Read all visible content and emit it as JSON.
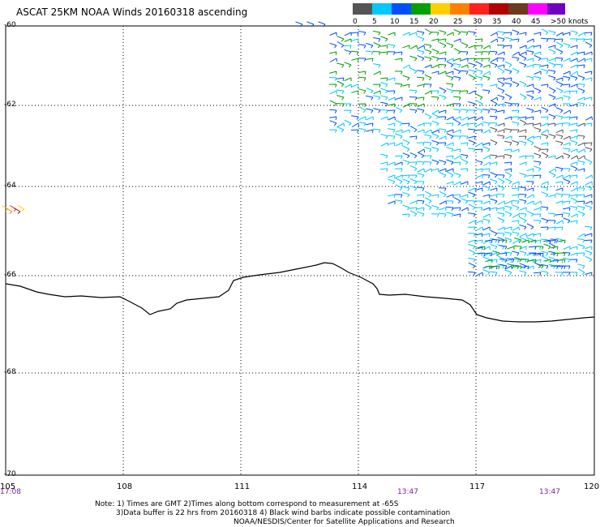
{
  "title": "ASCAT 25KM NOAA Winds 20160318 ascending",
  "latitude_labels": [
    "-60",
    "-62",
    "-64",
    "-66",
    "-68",
    "-70"
  ],
  "longitude_labels": [
    "105",
    "108",
    "111",
    "114",
    "117",
    "120"
  ],
  "time_labels": [
    "17:08",
    "13:47",
    "13:47"
  ],
  "legend": {
    "labels": [
      "0",
      "5",
      "10",
      "15",
      "20",
      "25",
      "30",
      "35",
      "40",
      "45",
      ">50 knots"
    ],
    "colors": [
      "#555555",
      "#00c8ff",
      "#0050ff",
      "#00a000",
      "#ffd000",
      "#ff8000",
      "#ff2020",
      "#b00000",
      "#6b3a1f",
      "#ff00ff",
      "#7000c0"
    ]
  },
  "notes": [
    "Note: 1) Times are GMT 2)Times along bottom correspond to measurement at -65S",
    "3)Data buffer is 22 hrs from 20160318 4) Black wind barbs indicate possible contamination",
    "NOAA/NESDIS/Center for Satellite Applications and Research"
  ]
}
